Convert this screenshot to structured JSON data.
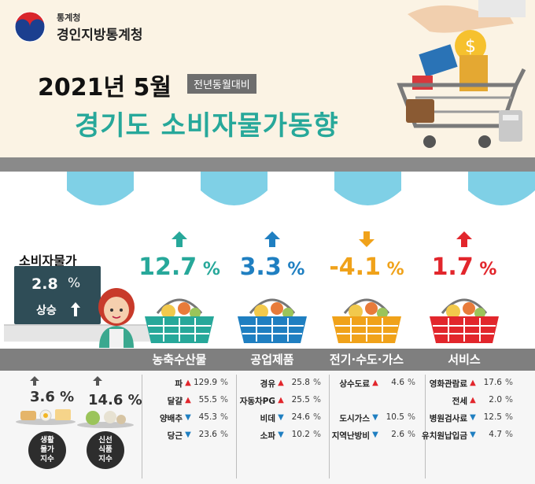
{
  "org": {
    "top": "통계청",
    "name": "경인지방통계청"
  },
  "date_title": "2021년 5월",
  "compare_badge": "전년동월대비",
  "main_title": "경기도 소비자물가동향",
  "cpi": {
    "label": "소비자물가",
    "value": "2.8",
    "unit": "%",
    "status": "상승"
  },
  "sub_indices": [
    {
      "rate": "3.6 %",
      "label_lines": [
        "생활",
        "물가",
        "지수"
      ]
    },
    {
      "rate": "14.6 %",
      "label_lines": [
        "신선",
        "식품",
        "지수"
      ]
    }
  ],
  "colors": {
    "up_dark": "#27a89a",
    "up_blue": "#1f7fc1",
    "down": "#f0a21a",
    "up_red": "#e2262c"
  },
  "categories": [
    {
      "name": "농축수산물",
      "value": "12.7",
      "unit": "%",
      "direction": "up",
      "color": "#27a89a",
      "items": [
        {
          "name": "파",
          "dir": "up",
          "value": "129.9",
          "unit": "%"
        },
        {
          "name": "달걀",
          "dir": "up",
          "value": "55.5",
          "unit": "%"
        },
        {
          "name": "양배추",
          "dir": "down",
          "value": "45.3",
          "unit": "%"
        },
        {
          "name": "당근",
          "dir": "down",
          "value": "23.6",
          "unit": "%"
        }
      ]
    },
    {
      "name": "공업제품",
      "value": "3.3",
      "unit": "%",
      "direction": "up",
      "color": "#1f7fc1",
      "items": [
        {
          "name": "경유",
          "dir": "up",
          "value": "25.8",
          "unit": "%"
        },
        {
          "name": "자동차PG",
          "dir": "up",
          "value": "25.5",
          "unit": "%"
        },
        {
          "name": "비데",
          "dir": "down",
          "value": "24.6",
          "unit": "%"
        },
        {
          "name": "소파",
          "dir": "down",
          "value": "10.2",
          "unit": "%"
        }
      ]
    },
    {
      "name": "전기·수도·가스",
      "value": "-4.1",
      "unit": "%",
      "direction": "down",
      "color": "#f0a21a",
      "items": [
        {
          "name": "상수도료",
          "dir": "up",
          "value": "4.6",
          "unit": "%"
        },
        {
          "name": "도시가스",
          "dir": "down",
          "value": "10.5",
          "unit": "%"
        },
        {
          "name": "지역난방비",
          "dir": "down",
          "value": "2.6",
          "unit": "%"
        }
      ]
    },
    {
      "name": "서비스",
      "value": "1.7",
      "unit": "%",
      "direction": "up",
      "color": "#e2262c",
      "items": [
        {
          "name": "영화관람료",
          "dir": "up",
          "value": "17.6",
          "unit": "%"
        },
        {
          "name": "전세",
          "dir": "up",
          "value": "2.0",
          "unit": "%"
        },
        {
          "name": "병원검사료",
          "dir": "down",
          "value": "12.5",
          "unit": "%"
        },
        {
          "name": "유치원납입금",
          "dir": "down",
          "value": "4.7",
          "unit": "%"
        }
      ]
    }
  ]
}
